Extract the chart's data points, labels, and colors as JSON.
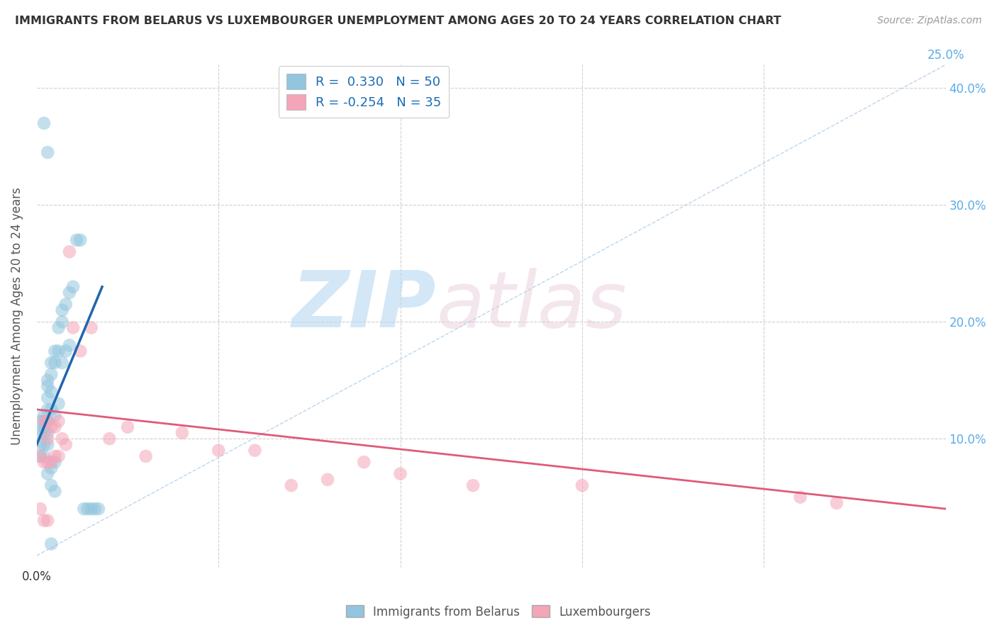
{
  "title": "IMMIGRANTS FROM BELARUS VS LUXEMBOURGER UNEMPLOYMENT AMONG AGES 20 TO 24 YEARS CORRELATION CHART",
  "source": "Source: ZipAtlas.com",
  "ylabel": "Unemployment Among Ages 20 to 24 years",
  "xlim": [
    0.0,
    0.25
  ],
  "ylim": [
    -0.01,
    0.42
  ],
  "yticks": [
    0.0,
    0.1,
    0.2,
    0.3,
    0.4
  ],
  "xticks": [
    0.0,
    0.05,
    0.1,
    0.15,
    0.2,
    0.25
  ],
  "blue_color": "#92c5de",
  "pink_color": "#f4a5b8",
  "blue_line_color": "#2166ac",
  "pink_line_color": "#e05a7a",
  "blue_scatter_x": [
    0.001,
    0.001,
    0.001,
    0.001,
    0.002,
    0.002,
    0.002,
    0.002,
    0.002,
    0.002,
    0.003,
    0.003,
    0.003,
    0.003,
    0.003,
    0.003,
    0.003,
    0.003,
    0.004,
    0.004,
    0.004,
    0.004,
    0.004,
    0.004,
    0.005,
    0.005,
    0.005,
    0.005,
    0.005,
    0.006,
    0.006,
    0.006,
    0.007,
    0.007,
    0.007,
    0.008,
    0.008,
    0.009,
    0.009,
    0.01,
    0.011,
    0.012,
    0.013,
    0.014,
    0.015,
    0.016,
    0.017,
    0.002,
    0.003,
    0.004
  ],
  "blue_scatter_y": [
    0.115,
    0.105,
    0.095,
    0.085,
    0.12,
    0.115,
    0.11,
    0.105,
    0.095,
    0.085,
    0.15,
    0.145,
    0.135,
    0.125,
    0.115,
    0.105,
    0.095,
    0.07,
    0.165,
    0.155,
    0.14,
    0.125,
    0.075,
    0.06,
    0.175,
    0.165,
    0.12,
    0.08,
    0.055,
    0.195,
    0.175,
    0.13,
    0.21,
    0.2,
    0.165,
    0.215,
    0.175,
    0.225,
    0.18,
    0.23,
    0.27,
    0.27,
    0.04,
    0.04,
    0.04,
    0.04,
    0.04,
    0.37,
    0.345,
    0.01
  ],
  "pink_scatter_x": [
    0.001,
    0.001,
    0.002,
    0.002,
    0.002,
    0.003,
    0.003,
    0.003,
    0.003,
    0.004,
    0.004,
    0.005,
    0.005,
    0.006,
    0.006,
    0.007,
    0.008,
    0.009,
    0.01,
    0.012,
    0.015,
    0.02,
    0.025,
    0.03,
    0.04,
    0.05,
    0.06,
    0.07,
    0.08,
    0.09,
    0.1,
    0.12,
    0.15,
    0.21,
    0.22
  ],
  "pink_scatter_y": [
    0.085,
    0.04,
    0.115,
    0.08,
    0.03,
    0.115,
    0.1,
    0.08,
    0.03,
    0.11,
    0.08,
    0.11,
    0.085,
    0.115,
    0.085,
    0.1,
    0.095,
    0.26,
    0.195,
    0.175,
    0.195,
    0.1,
    0.11,
    0.085,
    0.105,
    0.09,
    0.09,
    0.06,
    0.065,
    0.08,
    0.07,
    0.06,
    0.06,
    0.05,
    0.045
  ],
  "blue_trend_x": [
    0.0,
    0.018
  ],
  "blue_trend_y": [
    0.095,
    0.23
  ],
  "pink_trend_x": [
    0.0,
    0.25
  ],
  "pink_trend_y": [
    0.125,
    0.04
  ],
  "ref_line_x": [
    0.0,
    0.25
  ],
  "ref_line_y": [
    0.0,
    0.42
  ]
}
